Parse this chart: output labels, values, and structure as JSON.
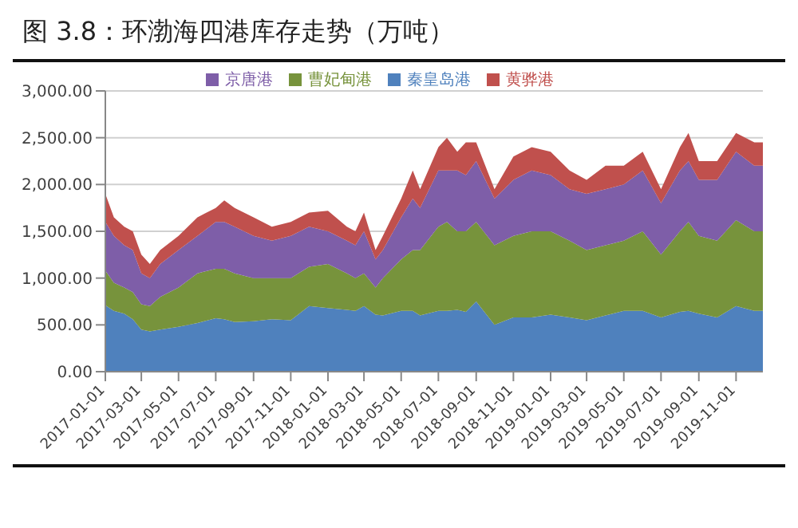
{
  "chart_data": {
    "type": "area",
    "title": "图 3.8：环渤海四港库存走势（万吨）",
    "stacked": true,
    "legend": "top",
    "grid": "y",
    "x": [
      "2017-01-01",
      "2017-01-15",
      "2017-02-01",
      "2017-02-15",
      "2017-03-01",
      "2017-03-15",
      "2017-04-01",
      "2017-05-01",
      "2017-06-01",
      "2017-07-01",
      "2017-07-15",
      "2017-08-01",
      "2017-09-01",
      "2017-10-01",
      "2017-11-01",
      "2017-12-01",
      "2018-01-01",
      "2018-02-01",
      "2018-02-15",
      "2018-03-01",
      "2018-03-20",
      "2018-04-01",
      "2018-05-01",
      "2018-05-20",
      "2018-06-01",
      "2018-07-01",
      "2018-07-15",
      "2018-08-01",
      "2018-08-15",
      "2018-09-01",
      "2018-10-01",
      "2018-11-01",
      "2018-12-01",
      "2019-01-01",
      "2019-02-01",
      "2019-03-01",
      "2019-04-01",
      "2019-05-01",
      "2019-06-01",
      "2019-07-01",
      "2019-08-01",
      "2019-08-15",
      "2019-09-01",
      "2019-10-01",
      "2019-11-01",
      "2019-12-01",
      "2019-12-15"
    ],
    "series": [
      {
        "name": "秦皇岛港",
        "color": "#4f81bd",
        "values": [
          710,
          650,
          620,
          560,
          450,
          430,
          450,
          480,
          520,
          570,
          560,
          530,
          540,
          560,
          550,
          700,
          680,
          660,
          650,
          700,
          610,
          600,
          650,
          650,
          600,
          650,
          650,
          660,
          640,
          750,
          500,
          580,
          580,
          610,
          580,
          550,
          600,
          650,
          650,
          580,
          640,
          650,
          620,
          580,
          700,
          650,
          650
        ]
      },
      {
        "name": "曹妃甸港",
        "color": "#77933c",
        "values": [
          370,
          300,
          280,
          290,
          270,
          270,
          350,
          420,
          530,
          530,
          540,
          520,
          460,
          440,
          450,
          420,
          470,
          390,
          350,
          350,
          290,
          400,
          550,
          650,
          700,
          900,
          950,
          840,
          860,
          850,
          850,
          870,
          920,
          890,
          820,
          750,
          750,
          750,
          850,
          670,
          860,
          950,
          830,
          820,
          920,
          850,
          850
        ]
      },
      {
        "name": "京唐港",
        "color": "#7e5ea8",
        "values": [
          520,
          500,
          450,
          450,
          330,
          300,
          350,
          400,
          400,
          500,
          500,
          500,
          450,
          400,
          450,
          430,
          350,
          350,
          350,
          450,
          300,
          300,
          450,
          550,
          450,
          600,
          550,
          650,
          600,
          650,
          500,
          600,
          650,
          600,
          550,
          600,
          600,
          600,
          650,
          550,
          650,
          650,
          600,
          650,
          730,
          700,
          700
        ]
      },
      {
        "name": "黄骅港",
        "color": "#c0504d",
        "values": [
          300,
          200,
          200,
          200,
          200,
          150,
          150,
          150,
          200,
          150,
          230,
          200,
          200,
          150,
          150,
          150,
          220,
          150,
          150,
          200,
          100,
          150,
          200,
          300,
          200,
          250,
          350,
          200,
          350,
          200,
          100,
          250,
          250,
          250,
          200,
          150,
          250,
          200,
          200,
          150,
          250,
          300,
          200,
          200,
          200,
          250,
          250
        ]
      }
    ],
    "xlim": [
      "2017-01-01",
      "2019-12-15"
    ],
    "xticks": [
      "2017-01-01",
      "2017-03-01",
      "2017-05-01",
      "2017-07-01",
      "2017-09-01",
      "2017-11-01",
      "2018-01-01",
      "2018-03-01",
      "2018-05-01",
      "2018-07-01",
      "2018-09-01",
      "2018-11-01",
      "2019-01-01",
      "2019-03-01",
      "2019-05-01",
      "2019-07-01",
      "2019-09-01",
      "2019-11-01"
    ],
    "ylim": [
      0,
      3000
    ],
    "yticks": [
      {
        "value": 0,
        "label": "0.00"
      },
      {
        "value": 500,
        "label": "500.00"
      },
      {
        "value": 1000,
        "label": "1,000.00"
      },
      {
        "value": 1500,
        "label": "1,500.00"
      },
      {
        "value": 2000,
        "label": "2,000.00"
      },
      {
        "value": 2500,
        "label": "2,500.00"
      },
      {
        "value": 3000,
        "label": "3,000.00"
      }
    ]
  }
}
